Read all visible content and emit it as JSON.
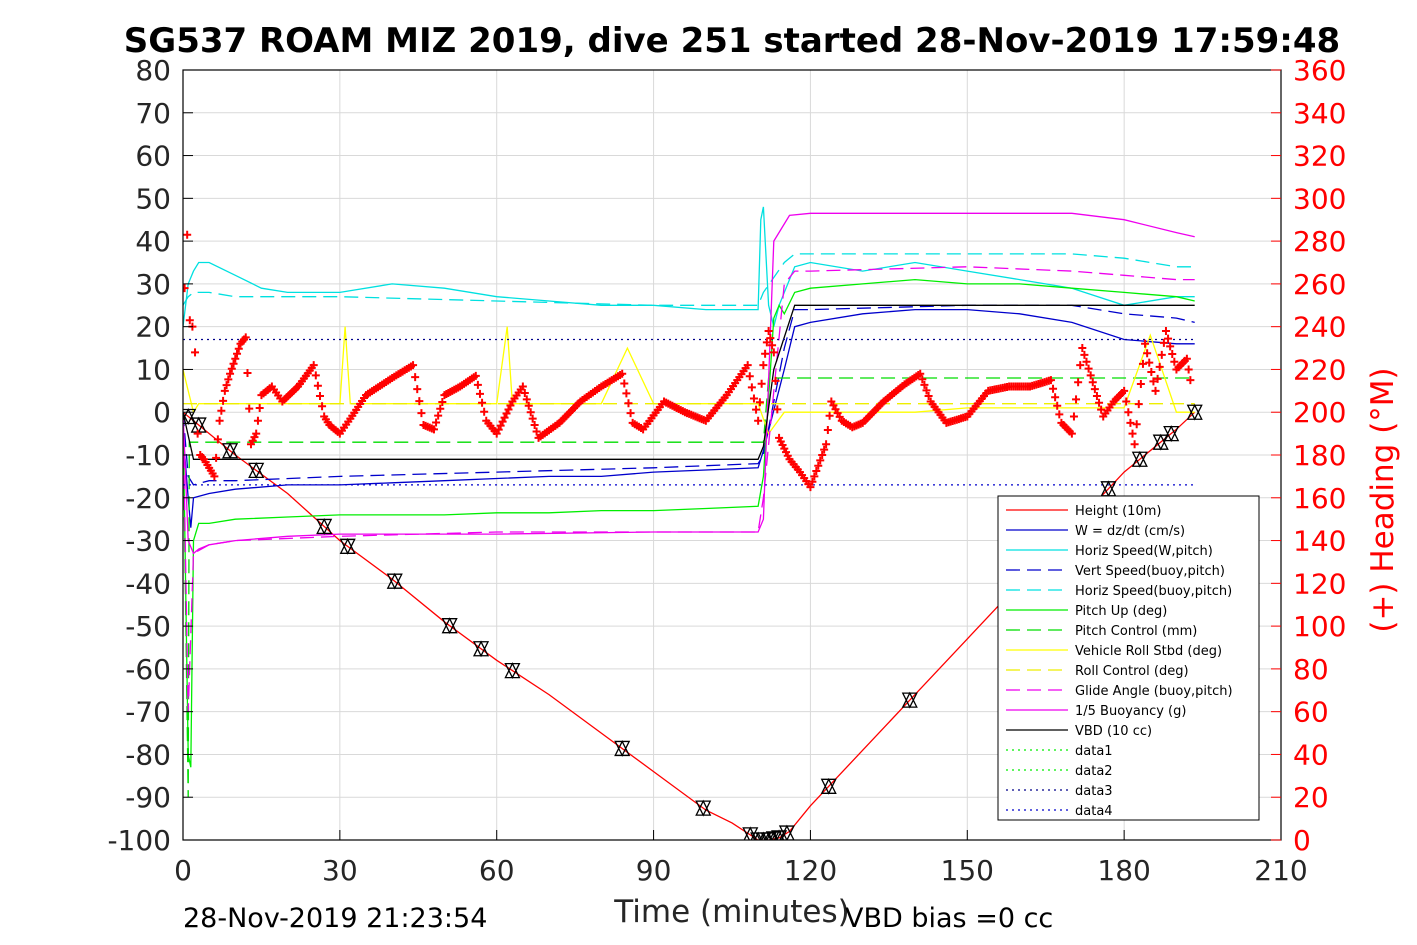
{
  "chart_data": {
    "type": "line",
    "title": "SG537 ROAM MIZ 2019, dive 251 started 28-Nov-2019 17:59:48",
    "xlabel": "Time (minutes)",
    "ylabel_right": "(+) Heading (°M)",
    "footer_left": "28-Nov-2019 21:23:54",
    "footer_right": "VBD bias =0 cc",
    "xlim": [
      0,
      210
    ],
    "ylim": [
      -100,
      80
    ],
    "ylim_right": [
      0,
      360
    ],
    "x_ticks": [
      "0",
      "30",
      "60",
      "90",
      "120",
      "150",
      "180",
      "210"
    ],
    "y_ticks": [
      "80",
      "70",
      "60",
      "50",
      "40",
      "30",
      "20",
      "10",
      "0",
      "-10",
      "-20",
      "-30",
      "-40",
      "-50",
      "-60",
      "-70",
      "-80",
      "-90",
      "-100"
    ],
    "y_ticks_right": [
      "360",
      "340",
      "320",
      "300",
      "280",
      "260",
      "240",
      "220",
      "200",
      "180",
      "160",
      "140",
      "120",
      "100",
      "80",
      "60",
      "40",
      "20",
      "0"
    ],
    "grid": true,
    "legend_position": "bottom-right",
    "series": [
      {
        "name": "Height (10m)",
        "color": "#ff0000",
        "style": "solid",
        "x": [
          0,
          2,
          10,
          20,
          30,
          40,
          50,
          60,
          70,
          80,
          90,
          100,
          105,
          110,
          112,
          114,
          116,
          120,
          130,
          140,
          150,
          160,
          170,
          180,
          190,
          193.5
        ],
        "y": [
          0,
          -2,
          -10,
          -19,
          -30,
          -39,
          -49,
          -58,
          -66,
          -75,
          -84,
          -93,
          -96,
          -100,
          -100,
          -99.5,
          -98,
          -92,
          -79,
          -66,
          -53,
          -40,
          -27,
          -14,
          -4,
          0
        ]
      },
      {
        "name": "W = dz/dt (cm/s)",
        "color": "#0000cc",
        "style": "solid",
        "x": [
          0,
          1,
          1.5,
          2,
          5,
          10,
          20,
          30,
          40,
          50,
          60,
          70,
          80,
          90,
          100,
          110,
          111,
          115,
          117,
          120,
          130,
          140,
          150,
          160,
          170,
          180,
          190,
          193.5
        ],
        "y": [
          -5,
          -20,
          -27,
          -20,
          -19,
          -18,
          -17,
          -17,
          -16.5,
          -16,
          -15.5,
          -15,
          -15,
          -14,
          -13.5,
          -13,
          -9,
          10,
          20,
          21,
          23,
          24,
          24,
          23,
          21,
          17,
          16,
          16
        ]
      },
      {
        "name": "Horiz Speed(W,pitch)",
        "color": "#00e0e0",
        "style": "solid",
        "x": [
          0,
          1,
          2,
          3,
          5,
          10,
          15,
          20,
          30,
          40,
          50,
          60,
          70,
          80,
          90,
          100,
          110,
          110.5,
          111,
          112,
          113,
          114,
          117,
          120,
          130,
          140,
          150,
          160,
          170,
          180,
          190,
          193.5
        ],
        "y": [
          20,
          30,
          33,
          35,
          35,
          32,
          29,
          28,
          28,
          30,
          29,
          27,
          26,
          25,
          25,
          24,
          24,
          45,
          48,
          25,
          20,
          25,
          34,
          35,
          33,
          35,
          33,
          31,
          29,
          25,
          27,
          27
        ]
      },
      {
        "name": "Vert Speed(buoy,pitch)",
        "color": "#0000cc",
        "style": "dashed",
        "x": [
          0,
          1,
          2,
          5,
          10,
          30,
          60,
          90,
          110,
          111,
          115,
          117,
          120,
          150,
          170,
          180,
          190,
          193.5
        ],
        "y": [
          0,
          -15,
          -17,
          -16,
          -16,
          -15,
          -14,
          -13,
          -12,
          -10,
          15,
          24,
          24,
          25,
          25,
          23,
          22,
          21
        ]
      },
      {
        "name": "Horiz Speed(buoy,pitch)",
        "color": "#00e0e0",
        "style": "dashed",
        "x": [
          0,
          1,
          2,
          5,
          10,
          30,
          60,
          90,
          110,
          111,
          115,
          117,
          120,
          150,
          170,
          180,
          190,
          193.5
        ],
        "y": [
          25,
          27,
          28,
          28,
          27,
          27,
          26,
          25,
          25,
          28,
          35,
          37,
          37,
          37,
          37,
          36,
          34,
          34
        ]
      },
      {
        "name": "Pitch Up (deg)",
        "color": "#00ee00",
        "style": "solid",
        "x": [
          0,
          1,
          1.5,
          2,
          3,
          5,
          10,
          20,
          30,
          40,
          50,
          60,
          70,
          80,
          90,
          100,
          110,
          111,
          113,
          114,
          115,
          117,
          120,
          130,
          140,
          150,
          160,
          170,
          180,
          190,
          193.5
        ],
        "y": [
          0,
          -80,
          -83,
          -30,
          -26,
          -26,
          -25,
          -24.5,
          -24,
          -24,
          -24,
          -23.5,
          -23.5,
          -23,
          -23,
          -22.5,
          -22,
          -15,
          22,
          25,
          23,
          28,
          29,
          30,
          31,
          30,
          30,
          29,
          28,
          27,
          26
        ]
      },
      {
        "name": "Pitch Control (mm)",
        "color": "#00dd00",
        "style": "dashed",
        "x": [
          0,
          1,
          1.2,
          3,
          111,
          112,
          193.5
        ],
        "y": [
          0,
          -90,
          -7,
          -7,
          -7,
          8,
          8
        ]
      },
      {
        "name": "Vehicle Roll Stbd (deg)",
        "color": "#ffff00",
        "style": "solid",
        "x": [
          0,
          1,
          2,
          3,
          10,
          20,
          30,
          31,
          32,
          40,
          50,
          60,
          62,
          63,
          70,
          80,
          85,
          90,
          100,
          110,
          112,
          115,
          120,
          130,
          140,
          150,
          160,
          170,
          180,
          185,
          190,
          193.5
        ],
        "y": [
          10,
          5,
          0,
          2,
          2,
          2,
          2,
          20,
          2,
          2,
          2,
          2,
          20,
          2,
          2,
          2,
          15,
          2,
          2,
          2,
          -5,
          0,
          0,
          0,
          0,
          1,
          1,
          1,
          1,
          18,
          0,
          0
        ]
      },
      {
        "name": "Roll Control (deg)",
        "color": "#eeee00",
        "style": "dashed",
        "x": [
          0,
          193.5
        ],
        "y": [
          2,
          2
        ]
      },
      {
        "name": "Glide Angle (buoy,pitch)",
        "color": "#ee00ee",
        "style": "dashed",
        "x": [
          0,
          1,
          2,
          5,
          10,
          30,
          60,
          90,
          110,
          111,
          115,
          117,
          120,
          150,
          170,
          180,
          190,
          193.5
        ],
        "y": [
          0,
          -70,
          -33,
          -31,
          -30,
          -29,
          -28,
          -28,
          -28,
          -20,
          30,
          33,
          33,
          34,
          33,
          32,
          31,
          31
        ]
      },
      {
        "name": "1/5 Buoyancy (g)",
        "color": "#ee00ee",
        "style": "solid",
        "x": [
          0,
          1,
          2,
          3,
          5,
          10,
          20,
          30,
          60,
          90,
          110,
          111,
          113,
          116,
          120,
          150,
          170,
          180,
          190,
          193.5
        ],
        "y": [
          0,
          -30,
          -33,
          -32,
          -31,
          -30,
          -29,
          -28.5,
          -28.5,
          -28,
          -28,
          -25,
          40,
          46,
          46.5,
          46.5,
          46.5,
          45,
          42,
          41
        ]
      },
      {
        "name": "VBD (10 cc)",
        "color": "#000000",
        "style": "solid",
        "x": [
          0,
          2,
          110,
          111,
          113,
          117,
          193.5
        ],
        "y": [
          0,
          -11,
          -11,
          -8,
          10,
          25,
          25
        ]
      },
      {
        "name": "data1",
        "color": "#00ee00",
        "style": "dotted",
        "x": [],
        "y": []
      },
      {
        "name": "data2",
        "color": "#00ee00",
        "style": "dotted",
        "x": [],
        "y": []
      },
      {
        "name": "data3",
        "color": "#00008b",
        "style": "dotted",
        "x": [
          0,
          193.5
        ],
        "y": [
          17,
          17
        ]
      },
      {
        "name": "data4",
        "color": "#0000cc",
        "style": "dotted",
        "x": [
          0,
          193.5
        ],
        "y": [
          -17,
          -17
        ]
      }
    ],
    "heading": {
      "axis": "right",
      "marker": "+",
      "color": "#ff0000",
      "x": [
        0.3,
        0.8,
        1.3,
        1.8,
        2.3,
        2.8,
        3.3,
        4,
        5,
        6,
        7,
        8,
        9,
        10,
        11,
        12,
        13,
        14,
        15,
        17,
        19,
        22,
        25,
        27,
        28,
        30,
        32,
        35,
        40,
        44,
        46,
        48,
        50,
        53,
        56,
        58,
        60,
        63,
        65,
        68,
        72,
        76,
        80,
        84,
        86,
        88,
        92,
        96,
        100,
        104,
        108,
        110,
        111,
        112,
        113,
        114,
        115,
        116,
        118,
        120,
        123,
        124,
        126,
        128,
        130,
        134,
        138,
        141,
        143,
        146,
        150,
        154,
        158,
        162,
        166,
        168,
        170,
        172,
        174,
        176,
        178,
        180,
        182,
        184,
        186,
        188,
        190,
        192,
        193
      ],
      "y": [
        258,
        283,
        243,
        240,
        228,
        190,
        180,
        178,
        174,
        170,
        196,
        210,
        218,
        225,
        232,
        235,
        185,
        190,
        208,
        212,
        205,
        212,
        222,
        198,
        194,
        190,
        197,
        208,
        216,
        222,
        194,
        192,
        208,
        212,
        217,
        196,
        190,
        205,
        212,
        188,
        195,
        205,
        212,
        218,
        195,
        192,
        205,
        200,
        196,
        208,
        222,
        196,
        222,
        238,
        228,
        188,
        183,
        178,
        172,
        165,
        185,
        205,
        196,
        193,
        195,
        205,
        213,
        218,
        205,
        195,
        198,
        210,
        212,
        212,
        215,
        195,
        190,
        230,
        214,
        198,
        205,
        210,
        185,
        232,
        210,
        238,
        220,
        225,
        210
      ]
    }
  }
}
